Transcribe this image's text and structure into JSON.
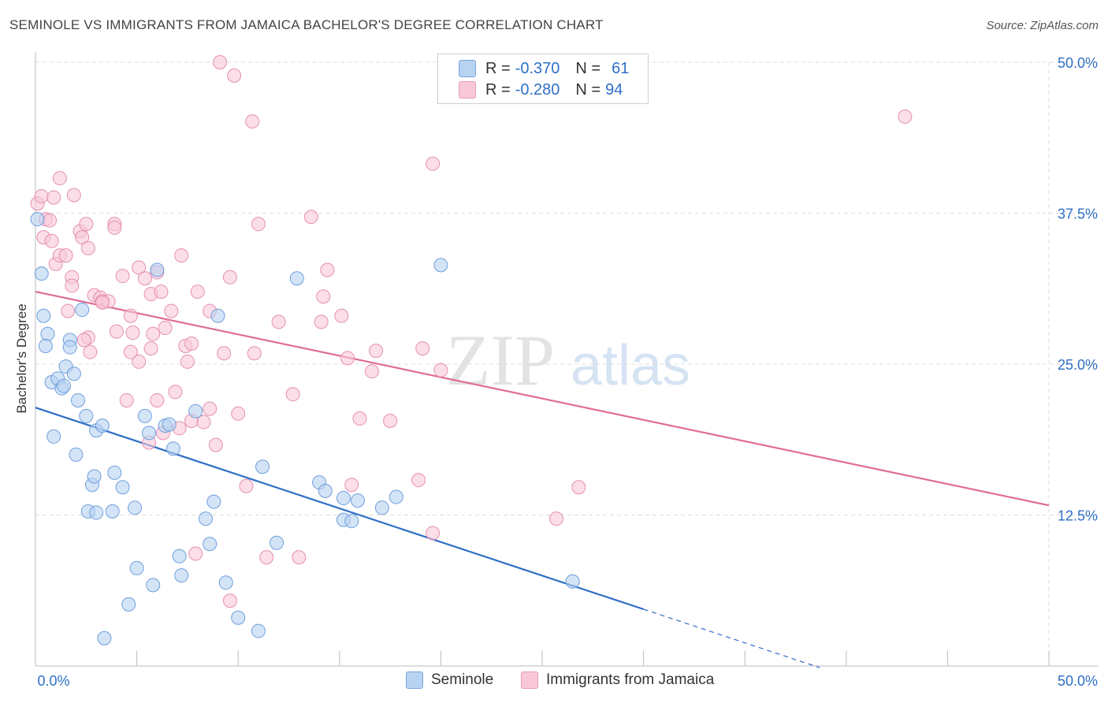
{
  "title": "SEMINOLE VS IMMIGRANTS FROM JAMAICA BACHELOR'S DEGREE CORRELATION CHART",
  "source": "Source: ZipAtlas.com",
  "watermark": {
    "zip": "ZIP",
    "atlas": "atlas"
  },
  "colors": {
    "seminole": "#2e6fc6",
    "jamaica": "#e06c97",
    "seminole_fill": "#b8d2f2",
    "jamaica_fill": "#f8c8d8",
    "grid": "#dddddd",
    "tick_label": "#2e6fc6"
  },
  "legend_top": {
    "seminole": {
      "r_label": "R = ",
      "r_value": "-0.370",
      "n_label": "N = ",
      "n_value": "61"
    },
    "jamaica": {
      "r_label": "R = ",
      "r_value": "-0.280",
      "n_label": "N = ",
      "n_value": "94"
    }
  },
  "chart_data": {
    "type": "scatter",
    "title": "SEMINOLE VS IMMIGRANTS FROM JAMAICA BACHELOR'S DEGREE CORRELATION CHART",
    "xlabel": "",
    "ylabel": "Bachelor's Degree",
    "xlim": [
      0,
      50
    ],
    "ylim": [
      0,
      50
    ],
    "x_tick_labels": [
      "0.0%",
      "50.0%"
    ],
    "y_tick_labels": [
      "12.5%",
      "25.0%",
      "37.5%",
      "50.0%"
    ],
    "y_ticks": [
      12.5,
      25.0,
      37.5,
      50.0
    ],
    "grid": true,
    "legend_position": "bottom",
    "series": [
      {
        "name": "Seminole",
        "color": "#2e6fc6",
        "points": [
          [
            0.1,
            37.0
          ],
          [
            0.3,
            32.5
          ],
          [
            0.4,
            29.0
          ],
          [
            0.6,
            27.5
          ],
          [
            0.5,
            26.5
          ],
          [
            0.8,
            23.5
          ],
          [
            0.9,
            19.0
          ],
          [
            1.1,
            23.8
          ],
          [
            1.3,
            23.0
          ],
          [
            1.4,
            23.2
          ],
          [
            1.5,
            24.8
          ],
          [
            1.7,
            27.0
          ],
          [
            1.7,
            26.4
          ],
          [
            1.9,
            24.2
          ],
          [
            2.1,
            22.0
          ],
          [
            2.0,
            17.5
          ],
          [
            2.3,
            29.5
          ],
          [
            2.5,
            20.7
          ],
          [
            2.6,
            12.8
          ],
          [
            2.8,
            15.0
          ],
          [
            2.9,
            15.7
          ],
          [
            3.0,
            19.5
          ],
          [
            3.0,
            12.7
          ],
          [
            3.3,
            19.9
          ],
          [
            3.8,
            12.8
          ],
          [
            3.9,
            16.0
          ],
          [
            4.3,
            14.8
          ],
          [
            4.6,
            5.1
          ],
          [
            4.9,
            13.1
          ],
          [
            5.0,
            8.1
          ],
          [
            5.4,
            20.7
          ],
          [
            5.6,
            19.3
          ],
          [
            5.8,
            6.7
          ],
          [
            6.0,
            32.8
          ],
          [
            6.4,
            19.9
          ],
          [
            6.8,
            18.0
          ],
          [
            7.1,
            9.1
          ],
          [
            7.2,
            7.5
          ],
          [
            7.9,
            21.1
          ],
          [
            8.4,
            12.2
          ],
          [
            8.6,
            10.1
          ],
          [
            8.8,
            13.6
          ],
          [
            9.0,
            29.0
          ],
          [
            9.4,
            6.9
          ],
          [
            10.0,
            4.0
          ],
          [
            11.0,
            2.9
          ],
          [
            11.2,
            16.5
          ],
          [
            11.9,
            10.2
          ],
          [
            12.9,
            32.1
          ],
          [
            14.0,
            15.2
          ],
          [
            14.3,
            14.5
          ],
          [
            15.2,
            13.9
          ],
          [
            15.2,
            12.1
          ],
          [
            15.6,
            12.0
          ],
          [
            15.9,
            13.7
          ],
          [
            17.1,
            13.1
          ],
          [
            17.8,
            14.0
          ],
          [
            20.0,
            33.2
          ],
          [
            26.5,
            7.0
          ],
          [
            3.4,
            2.3
          ],
          [
            6.6,
            20.0
          ]
        ]
      },
      {
        "name": "Immigrants from Jamaica",
        "color": "#e06c97",
        "points": [
          [
            9.1,
            50.0
          ],
          [
            9.8,
            48.9
          ],
          [
            10.7,
            45.1
          ],
          [
            0.1,
            38.3
          ],
          [
            0.3,
            38.9
          ],
          [
            0.5,
            37.0
          ],
          [
            0.7,
            36.9
          ],
          [
            1.2,
            40.4
          ],
          [
            1.9,
            39.0
          ],
          [
            0.4,
            35.5
          ],
          [
            0.8,
            35.2
          ],
          [
            1.0,
            33.3
          ],
          [
            1.2,
            34.0
          ],
          [
            1.5,
            34.0
          ],
          [
            1.8,
            32.2
          ],
          [
            1.8,
            31.5
          ],
          [
            2.2,
            36.0
          ],
          [
            2.3,
            35.5
          ],
          [
            2.5,
            36.6
          ],
          [
            2.6,
            34.6
          ],
          [
            2.9,
            30.7
          ],
          [
            3.2,
            30.5
          ],
          [
            3.3,
            30.2
          ],
          [
            3.6,
            30.2
          ],
          [
            3.9,
            36.6
          ],
          [
            3.9,
            36.3
          ],
          [
            4.3,
            32.3
          ],
          [
            4.7,
            29.0
          ],
          [
            4.8,
            27.6
          ],
          [
            5.1,
            33.0
          ],
          [
            5.4,
            32.1
          ],
          [
            5.7,
            30.8
          ],
          [
            5.8,
            27.5
          ],
          [
            6.0,
            32.6
          ],
          [
            6.2,
            31.0
          ],
          [
            6.4,
            28.0
          ],
          [
            6.7,
            29.4
          ],
          [
            7.2,
            34.0
          ],
          [
            7.5,
            25.2
          ],
          [
            7.4,
            26.5
          ],
          [
            7.7,
            26.7
          ],
          [
            8.0,
            31.0
          ],
          [
            8.6,
            29.4
          ],
          [
            9.3,
            25.9
          ],
          [
            9.6,
            32.2
          ],
          [
            10.4,
            14.9
          ],
          [
            10.8,
            25.9
          ],
          [
            11.0,
            36.6
          ],
          [
            11.4,
            9.0
          ],
          [
            12.0,
            28.5
          ],
          [
            12.7,
            22.5
          ],
          [
            13.0,
            9.0
          ],
          [
            13.6,
            37.2
          ],
          [
            14.1,
            28.5
          ],
          [
            14.2,
            30.6
          ],
          [
            14.4,
            32.8
          ],
          [
            15.1,
            29.0
          ],
          [
            15.4,
            25.5
          ],
          [
            15.6,
            15.0
          ],
          [
            16.0,
            20.5
          ],
          [
            16.6,
            24.4
          ],
          [
            16.8,
            26.1
          ],
          [
            17.5,
            20.3
          ],
          [
            18.9,
            15.4
          ],
          [
            19.1,
            26.3
          ],
          [
            19.6,
            11.0
          ],
          [
            19.6,
            41.6
          ],
          [
            20.0,
            24.5
          ],
          [
            25.7,
            12.2
          ],
          [
            26.8,
            14.8
          ],
          [
            42.9,
            45.5
          ],
          [
            2.6,
            27.2
          ],
          [
            3.3,
            30.1
          ],
          [
            4.5,
            22.0
          ],
          [
            4.7,
            26.0
          ],
          [
            5.1,
            25.2
          ],
          [
            5.7,
            26.3
          ],
          [
            6.0,
            22.0
          ],
          [
            6.3,
            19.3
          ],
          [
            6.9,
            22.7
          ],
          [
            7.1,
            19.7
          ],
          [
            7.7,
            20.3
          ],
          [
            7.9,
            9.3
          ],
          [
            8.3,
            20.2
          ],
          [
            8.6,
            21.3
          ],
          [
            8.9,
            18.3
          ],
          [
            9.6,
            5.4
          ],
          [
            10.0,
            20.9
          ],
          [
            2.4,
            27.0
          ],
          [
            2.7,
            26.0
          ],
          [
            4.0,
            27.7
          ],
          [
            5.6,
            18.5
          ],
          [
            1.6,
            29.4
          ],
          [
            0.9,
            38.8
          ]
        ]
      }
    ],
    "trend_lines": [
      {
        "series": "Seminole",
        "x": [
          0,
          30
        ],
        "y": [
          21.4,
          4.7
        ],
        "dashed_extension_x": [
          30,
          38.7
        ]
      },
      {
        "series": "Immigrants from Jamaica",
        "x": [
          0,
          50
        ],
        "y": [
          31.0,
          13.3
        ]
      }
    ]
  },
  "bottom_legend": {
    "seminole": "Seminole",
    "jamaica": "Immigrants from Jamaica"
  }
}
